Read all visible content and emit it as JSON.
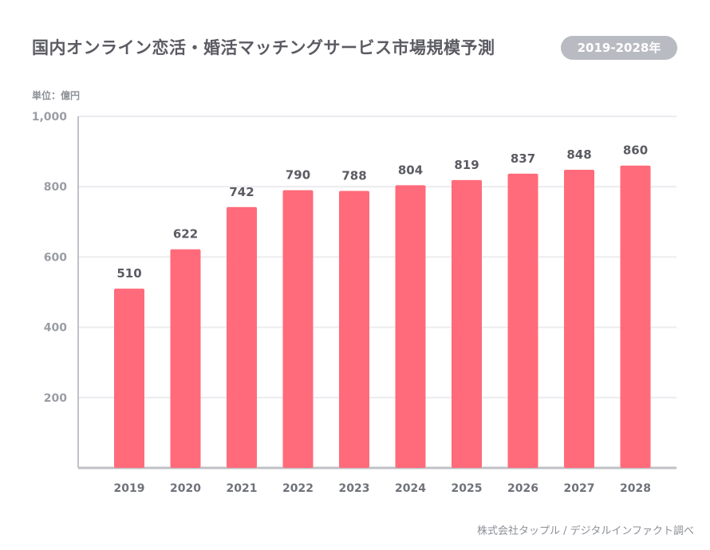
{
  "title": "国内オンライン恋活・婚活マッチングサービス市場規模予測",
  "badge": "2019-2028年",
  "unit_label": "単位：億円",
  "source": "株式会社タップル / デジタルインファクト調べ",
  "colors": {
    "bar": "#ff6b7a",
    "grid": "#ececf0",
    "axis": "#bfc1c6"
  },
  "chart_data": {
    "type": "bar",
    "title": "国内オンライン恋活・婚活マッチングサービス市場規模予測",
    "categories": [
      "2019",
      "2020",
      "2021",
      "2022",
      "2023",
      "2024",
      "2025",
      "2026",
      "2027",
      "2028"
    ],
    "values": [
      510,
      622,
      742,
      790,
      788,
      804,
      819,
      837,
      848,
      860
    ],
    "data_labels": [
      "510",
      "622",
      "742",
      "790",
      "788",
      "804",
      "819",
      "837",
      "848",
      "860"
    ],
    "yticks": [
      200,
      400,
      600,
      800,
      1000
    ],
    "ytick_labels": [
      "200",
      "400",
      "600",
      "800",
      "1,000"
    ],
    "ylim": [
      0,
      1000
    ],
    "xlabel": "",
    "ylabel": "単位：億円",
    "grid": true
  }
}
